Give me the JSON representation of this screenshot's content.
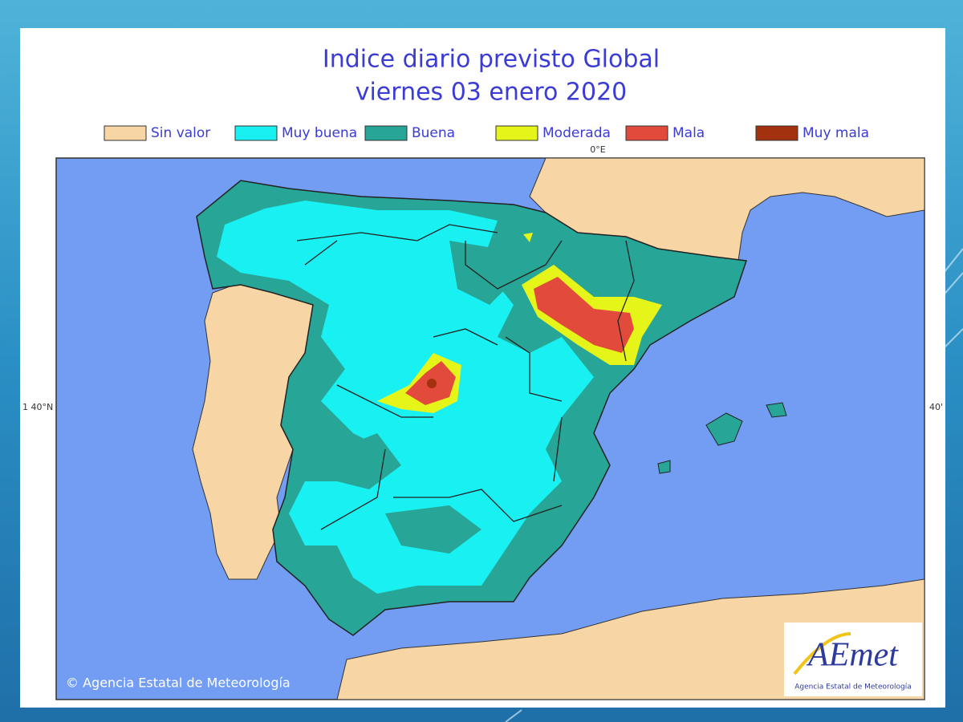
{
  "header": {
    "title": "Indice diario previsto Global",
    "subtitle": "viernes 03 enero 2020"
  },
  "legend": [
    {
      "label": "Sin valor",
      "color": "#f7d5a4"
    },
    {
      "label": "Muy buena",
      "color": "#19f0f2"
    },
    {
      "label": "Buena",
      "color": "#27a596"
    },
    {
      "label": "Moderada",
      "color": "#e6f519"
    },
    {
      "label": "Mala",
      "color": "#e24a3c"
    },
    {
      "label": "Muy mala",
      "color": "#a3300e"
    }
  ],
  "map": {
    "top_label": "0°E",
    "left_label": "1 40°N",
    "right_label": "40'",
    "credit": "© Agencia Estatal de Meteorología"
  },
  "logo": {
    "name": "AEmet",
    "subtitle": "Agencia Estatal de Meteorología"
  }
}
